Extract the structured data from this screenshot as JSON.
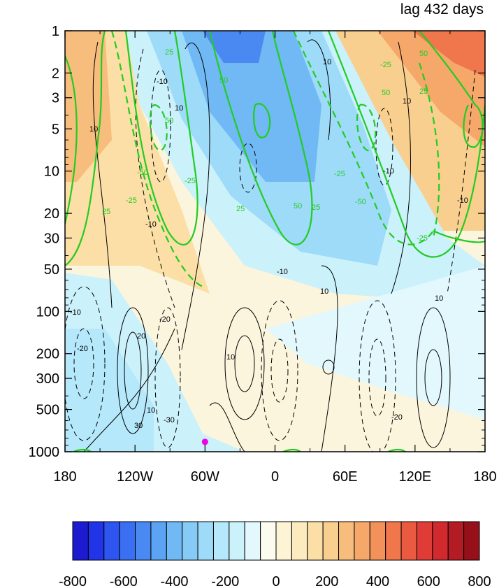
{
  "chart_data": {
    "type": "heatmap",
    "title": "lag 432 days",
    "x_axis": {
      "range": [
        -180,
        180
      ],
      "tick_values": [
        -180,
        -120,
        -60,
        0,
        60,
        120,
        180
      ],
      "tick_labels": [
        "180",
        "120W",
        "60W",
        "0",
        "60E",
        "120E",
        "180"
      ]
    },
    "y_axis": {
      "scale": "log",
      "inverted": true,
      "range": [
        1,
        1000
      ],
      "tick_values": [
        1,
        2,
        3,
        5,
        10,
        20,
        30,
        50,
        100,
        200,
        300,
        500,
        1000
      ],
      "tick_labels": [
        "1",
        "2",
        "3",
        "5",
        "10",
        "20",
        "30",
        "50",
        "100",
        "200",
        "300",
        "500",
        "1000"
      ]
    },
    "colorbar": {
      "range": [
        -800,
        800
      ],
      "interval": 50,
      "tick_values": [
        -800,
        -600,
        -400,
        -200,
        0,
        200,
        400,
        600,
        800
      ],
      "tick_labels": [
        "-800",
        "-600",
        "-400",
        "-200",
        "0",
        "200",
        "400",
        "600",
        "800"
      ],
      "colors": [
        "#1c1bd0",
        "#2234e8",
        "#2f55f0",
        "#3a6ff2",
        "#4a89f2",
        "#5ca4f3",
        "#70b9f4",
        "#86cbf6",
        "#9edbf8",
        "#b5e8fa",
        "#cbf1fb",
        "#e2f8fc",
        "#fbfcef",
        "#fdf4d6",
        "#fcebbf",
        "#fbdfa6",
        "#f9cf8f",
        "#f7bd7c",
        "#f5a86a",
        "#f3915a",
        "#f0764b",
        "#ea5a40",
        "#e03c37",
        "#d02a2e",
        "#b41c24",
        "#951018"
      ],
      "shaded_fields": [
        {
          "center": [
            -50,
            1
          ],
          "value": -350
        },
        {
          "center": [
            -45,
            10
          ],
          "value": -250
        },
        {
          "center": [
            0,
            50
          ],
          "value": -150
        },
        {
          "center": [
            -150,
            300
          ],
          "value": -100
        },
        {
          "center": [
            145,
            1.5
          ],
          "value": 450
        },
        {
          "center": [
            -165,
            3
          ],
          "value": 250
        }
      ]
    },
    "contour_labels_black": [
      "10",
      "-10",
      "20",
      "-20",
      "30",
      "-30"
    ],
    "contour_labels_green": [
      "25",
      "-25",
      "50",
      "-50"
    ],
    "marker": {
      "lon": -60,
      "level": 850,
      "color": "#ee00ee"
    }
  }
}
